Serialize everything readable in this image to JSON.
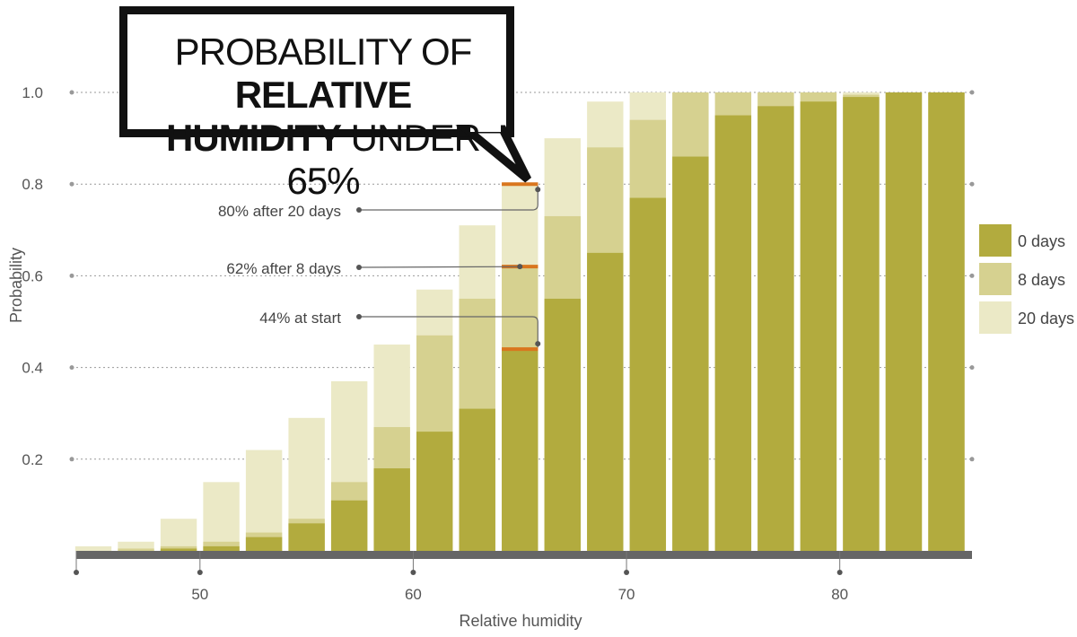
{
  "chart_data": {
    "type": "bar",
    "title_parts": [
      {
        "text": "PROBABILITY OF ",
        "bold": false
      },
      {
        "text": "RELATIVE",
        "bold": true
      },
      {
        "text": "HUMIDITY",
        "bold": true
      },
      {
        "text": " UNDER 65%",
        "bold": false
      }
    ],
    "xlabel": "Relative humidity",
    "ylabel": "Probability",
    "x": [
      45,
      47,
      49,
      51,
      53,
      55,
      57,
      59,
      61,
      63,
      65,
      67,
      69,
      71,
      73,
      75,
      77,
      79,
      81,
      83,
      85
    ],
    "xlim": [
      44.2,
      86.2
    ],
    "ylim": [
      0,
      1.0
    ],
    "xticks": [
      50,
      60,
      70,
      80
    ],
    "yticks": [
      0.2,
      0.4,
      0.6,
      0.8,
      1.0
    ],
    "xtick_labels": [
      "50",
      "60",
      "70",
      "80"
    ],
    "ytick_labels": [
      "0.2",
      "0.4",
      "0.6",
      "0.8",
      "1.0"
    ],
    "series": [
      {
        "name": "20 days",
        "color": "#ebe9c6",
        "values": [
          0.01,
          0.02,
          0.07,
          0.15,
          0.22,
          0.29,
          0.37,
          0.45,
          0.57,
          0.71,
          0.8,
          0.9,
          0.98,
          1.0,
          1.0,
          1.0,
          1.0,
          1.0,
          1.0,
          1.0,
          1.0
        ]
      },
      {
        "name": "8 days",
        "color": "#d6d190",
        "values": [
          0.0,
          0.005,
          0.01,
          0.02,
          0.04,
          0.07,
          0.15,
          0.27,
          0.47,
          0.55,
          0.62,
          0.73,
          0.88,
          0.94,
          1.0,
          1.0,
          1.0,
          1.0,
          0.995,
          1.0,
          1.0
        ]
      },
      {
        "name": "0 days",
        "color": "#b2ab3e",
        "values": [
          0.0,
          0.0,
          0.005,
          0.01,
          0.03,
          0.06,
          0.11,
          0.18,
          0.26,
          0.31,
          0.44,
          0.55,
          0.65,
          0.77,
          0.86,
          0.95,
          0.97,
          0.98,
          0.99,
          1.0,
          1.0
        ]
      }
    ],
    "legend_order": [
      "0 days",
      "8 days",
      "20 days"
    ],
    "legend_position": "right",
    "annotations": [
      {
        "text": "80% after 20 days",
        "x": 65,
        "y": 0.8
      },
      {
        "text": "62% after 8 days",
        "x": 65,
        "y": 0.62
      },
      {
        "text": "44% at start",
        "x": 65,
        "y": 0.44
      }
    ],
    "highlight_color": "#d9761e",
    "axis_color": "#666666",
    "grid": true
  }
}
